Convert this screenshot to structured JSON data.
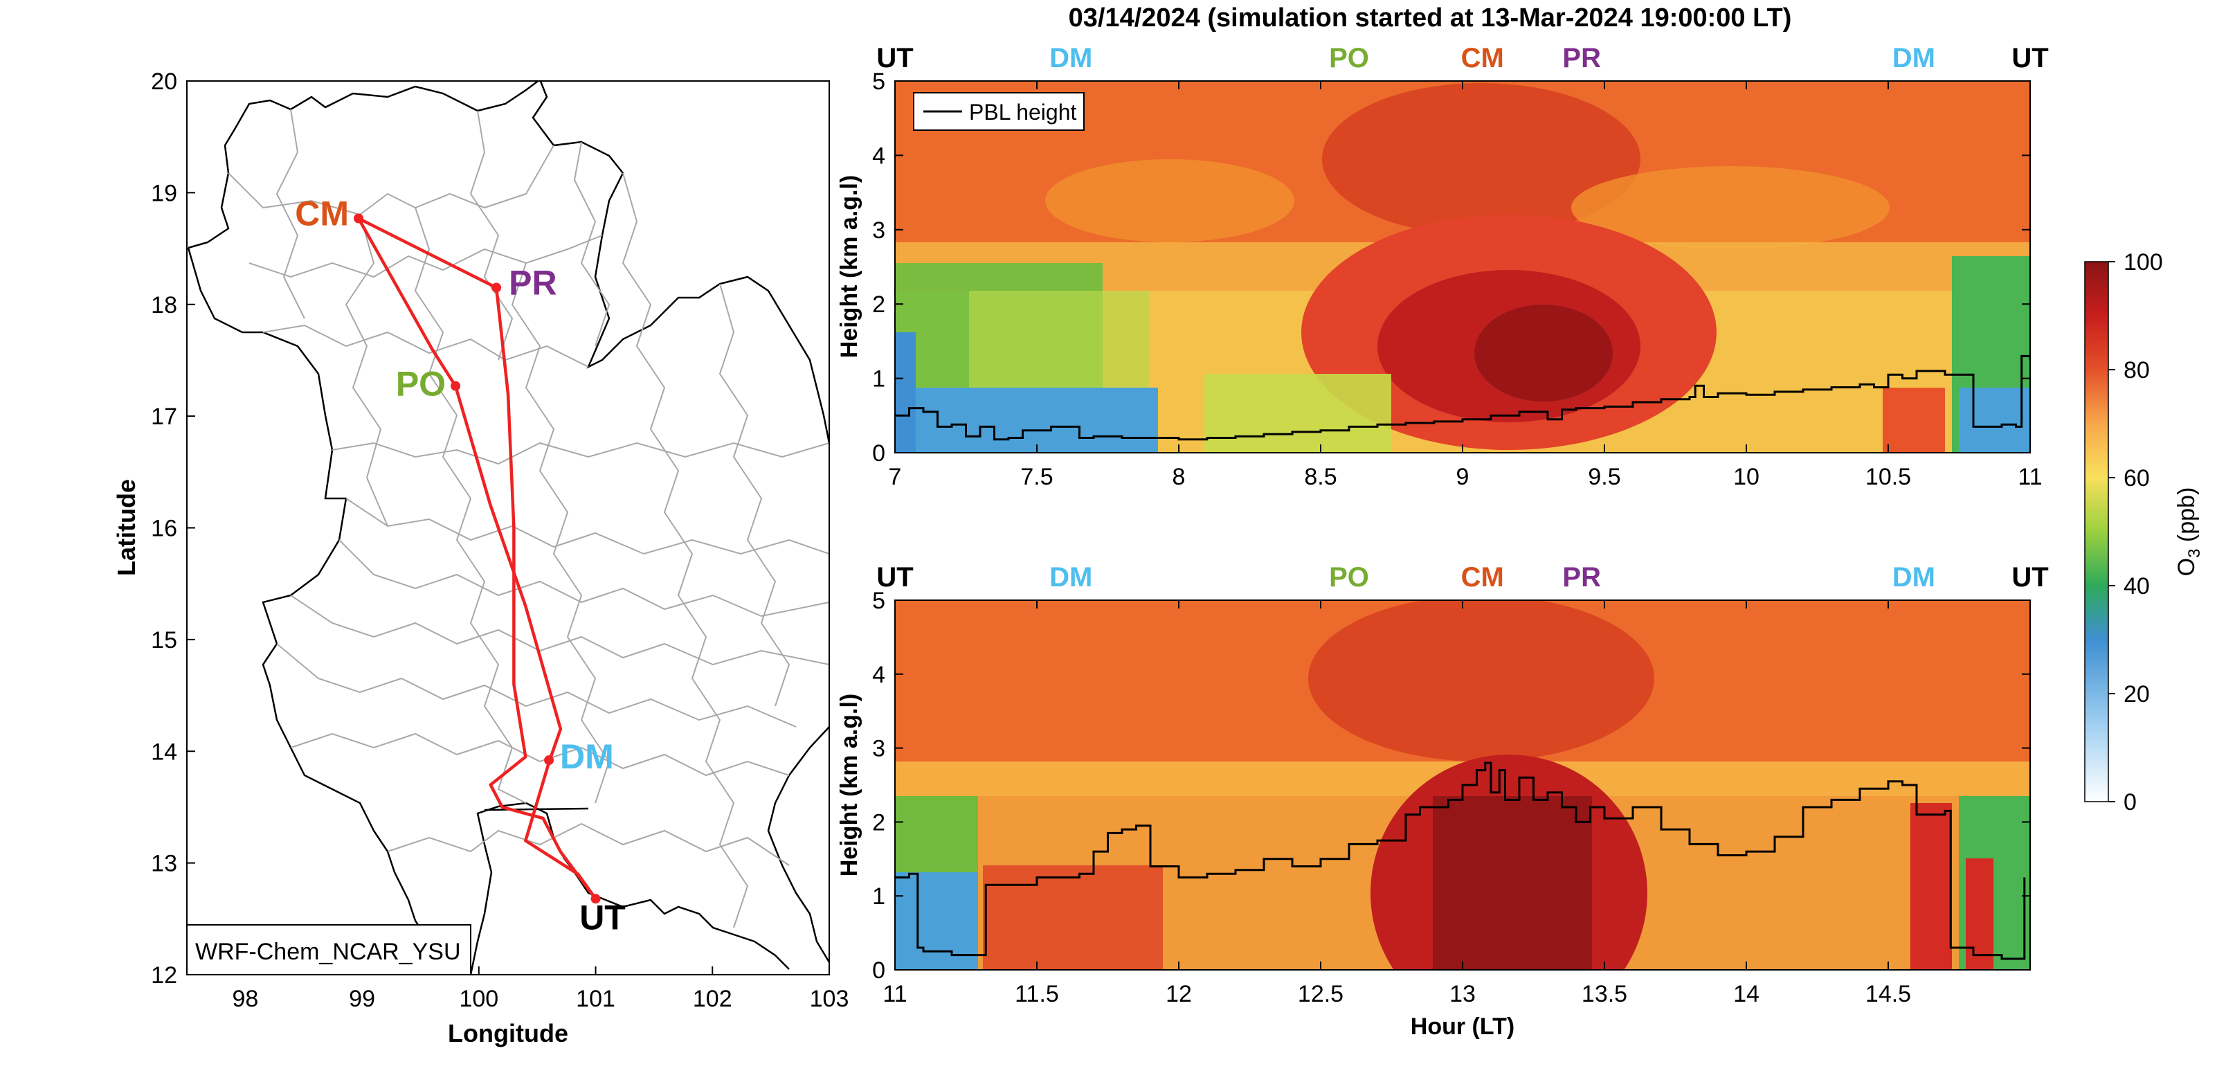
{
  "figure": {
    "title": "03/14/2024 (simulation started at 13-Mar-2024 19:00:00 LT)"
  },
  "colors": {
    "CM": "#d95319",
    "PR": "#7e2f8e",
    "PO": "#77ac30",
    "DM": "#4dbeee",
    "UT": "#000000",
    "track": "#ee2222",
    "border": "#999999",
    "pbl": "#000000"
  },
  "chart_data": [
    {
      "id": "map",
      "type": "scatter",
      "xlabel": "Longitude",
      "ylabel": "Latitude",
      "xlim": [
        97.5,
        103
      ],
      "ylim": [
        12,
        20
      ],
      "xticks": [
        98,
        99,
        100,
        101,
        102,
        103
      ],
      "yticks": [
        12,
        13,
        14,
        15,
        16,
        17,
        18,
        19,
        20
      ],
      "model_label": "WRF-Chem_NCAR_YSU",
      "stations": [
        {
          "code": "CM",
          "lon": 98.97,
          "lat": 18.77
        },
        {
          "code": "PR",
          "lon": 100.15,
          "lat": 18.15
        },
        {
          "code": "PO",
          "lon": 99.8,
          "lat": 17.27
        },
        {
          "code": "DM",
          "lon": 100.6,
          "lat": 13.92
        },
        {
          "code": "UT",
          "lon": 101.0,
          "lat": 12.68
        }
      ],
      "flight_track": [
        [
          101.0,
          12.68
        ],
        [
          100.85,
          12.9
        ],
        [
          100.4,
          13.2
        ],
        [
          100.6,
          13.9
        ],
        [
          100.7,
          14.2
        ],
        [
          100.4,
          15.3
        ],
        [
          100.1,
          16.2
        ],
        [
          99.8,
          17.27
        ],
        [
          99.6,
          17.6
        ],
        [
          98.97,
          18.77
        ],
        [
          100.15,
          18.15
        ],
        [
          100.25,
          17.2
        ],
        [
          100.3,
          16.0
        ],
        [
          100.3,
          14.6
        ],
        [
          100.4,
          13.95
        ],
        [
          100.1,
          13.7
        ],
        [
          100.2,
          13.5
        ],
        [
          100.55,
          13.4
        ],
        [
          100.7,
          13.1
        ],
        [
          101.0,
          12.68
        ]
      ]
    },
    {
      "id": "curtain_top",
      "type": "heatmap",
      "variable": "O3",
      "xlabel": "",
      "ylabel": "Height (km a.g.l)",
      "xlim": [
        7,
        11
      ],
      "ylim": [
        0,
        5
      ],
      "xticks": [
        7,
        7.5,
        8,
        8.5,
        9,
        9.5,
        10,
        10.5,
        11
      ],
      "yticks": [
        0,
        1,
        2,
        3,
        4,
        5
      ],
      "legend": {
        "entries": [
          "PBL height"
        ],
        "position": "top-left"
      },
      "station_marks": [
        {
          "code": "UT",
          "hour": 7.0
        },
        {
          "code": "DM",
          "hour": 7.62
        },
        {
          "code": "PO",
          "hour": 8.6
        },
        {
          "code": "CM",
          "hour": 9.07
        },
        {
          "code": "PR",
          "hour": 9.42
        },
        {
          "code": "DM",
          "hour": 10.59
        },
        {
          "code": "UT",
          "hour": 11.0
        }
      ],
      "pbl_height": {
        "x": [
          7.0,
          7.05,
          7.1,
          7.15,
          7.2,
          7.25,
          7.3,
          7.35,
          7.4,
          7.45,
          7.5,
          7.55,
          7.6,
          7.65,
          7.7,
          7.8,
          7.9,
          8.0,
          8.1,
          8.2,
          8.3,
          8.4,
          8.5,
          8.6,
          8.7,
          8.8,
          8.9,
          9.0,
          9.1,
          9.2,
          9.3,
          9.35,
          9.4,
          9.5,
          9.6,
          9.7,
          9.8,
          9.82,
          9.85,
          9.9,
          10.0,
          10.1,
          10.2,
          10.3,
          10.4,
          10.45,
          10.5,
          10.55,
          10.6,
          10.7,
          10.78,
          10.8,
          10.85,
          10.9,
          10.95,
          10.97,
          11.0
        ],
        "y": [
          0.5,
          0.6,
          0.55,
          0.35,
          0.38,
          0.22,
          0.35,
          0.18,
          0.2,
          0.3,
          0.3,
          0.35,
          0.35,
          0.2,
          0.22,
          0.2,
          0.2,
          0.18,
          0.2,
          0.22,
          0.25,
          0.28,
          0.3,
          0.35,
          0.38,
          0.4,
          0.42,
          0.45,
          0.5,
          0.55,
          0.45,
          0.58,
          0.6,
          0.62,
          0.68,
          0.72,
          0.75,
          0.9,
          0.75,
          0.8,
          0.78,
          0.82,
          0.85,
          0.88,
          0.92,
          0.88,
          1.05,
          1.0,
          1.1,
          1.05,
          1.05,
          0.35,
          0.35,
          0.38,
          0.35,
          1.3,
          1.25
        ]
      }
    },
    {
      "id": "curtain_bottom",
      "type": "heatmap",
      "variable": "O3",
      "xlabel": "Hour (LT)",
      "ylabel": "Height (km a.g.l)",
      "xlim": [
        11,
        15
      ],
      "ylim": [
        0,
        5
      ],
      "xticks": [
        11,
        11.5,
        12,
        12.5,
        13,
        13.5,
        14,
        14.5
      ],
      "yticks": [
        0,
        1,
        2,
        3,
        4,
        5
      ],
      "station_marks": [
        {
          "code": "UT",
          "hour": 11.0
        },
        {
          "code": "DM",
          "hour": 11.62
        },
        {
          "code": "PO",
          "hour": 12.6
        },
        {
          "code": "CM",
          "hour": 13.07
        },
        {
          "code": "PR",
          "hour": 13.42
        },
        {
          "code": "DM",
          "hour": 14.59
        },
        {
          "code": "UT",
          "hour": 15.0
        }
      ],
      "pbl_height": {
        "x": [
          11.0,
          11.05,
          11.08,
          11.1,
          11.2,
          11.3,
          11.32,
          11.4,
          11.5,
          11.6,
          11.65,
          11.7,
          11.75,
          11.8,
          11.85,
          11.9,
          12.0,
          12.1,
          12.2,
          12.3,
          12.4,
          12.5,
          12.6,
          12.7,
          12.8,
          12.85,
          12.9,
          12.95,
          13.0,
          13.05,
          13.08,
          13.1,
          13.13,
          13.15,
          13.2,
          13.25,
          13.3,
          13.35,
          13.4,
          13.45,
          13.5,
          13.6,
          13.7,
          13.8,
          13.9,
          14.0,
          14.1,
          14.2,
          14.3,
          14.4,
          14.5,
          14.55,
          14.6,
          14.7,
          14.72,
          14.75,
          14.8,
          14.9,
          14.95,
          14.98
        ],
        "y": [
          1.25,
          1.3,
          0.3,
          0.25,
          0.2,
          0.2,
          1.15,
          1.15,
          1.25,
          1.25,
          1.3,
          1.6,
          1.85,
          1.9,
          1.95,
          1.4,
          1.25,
          1.3,
          1.35,
          1.5,
          1.4,
          1.5,
          1.7,
          1.75,
          2.1,
          2.2,
          2.2,
          2.3,
          2.5,
          2.7,
          2.8,
          2.4,
          2.7,
          2.3,
          2.6,
          2.3,
          2.4,
          2.2,
          2.0,
          2.2,
          2.05,
          2.2,
          1.9,
          1.7,
          1.55,
          1.6,
          1.8,
          2.2,
          2.3,
          2.45,
          2.55,
          2.5,
          2.1,
          2.15,
          0.3,
          0.3,
          0.2,
          0.15,
          0.15,
          1.25
        ]
      }
    },
    {
      "id": "colorbar",
      "type": "heatmap",
      "label": "O",
      "label_subscript": "3",
      "label_suffix": " (ppb)",
      "range": [
        0,
        100
      ],
      "ticks": [
        0,
        20,
        40,
        60,
        80,
        100
      ]
    }
  ]
}
